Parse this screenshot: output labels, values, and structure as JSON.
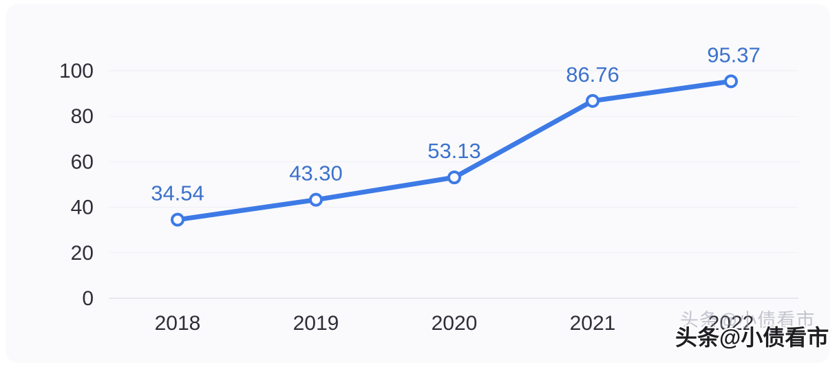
{
  "chart_data": {
    "type": "line",
    "title": "",
    "xlabel": "",
    "ylabel": "",
    "categories": [
      "2018",
      "2019",
      "2020",
      "2021",
      "2022"
    ],
    "series": [
      {
        "name": "value",
        "values": [
          34.54,
          43.3,
          53.13,
          86.76,
          95.37
        ],
        "point_labels": [
          "34.54",
          "43.30",
          "53.13",
          "86.76",
          "95.37"
        ]
      }
    ],
    "y_ticks": [
      0,
      20,
      40,
      60,
      80,
      100
    ],
    "ylim": [
      0,
      100
    ],
    "grid": "faint-horizontal",
    "legend_position": "none",
    "marker": "open-circle",
    "colors": {
      "line": "#3D7AE6",
      "marker_fill": "#fbfbfd",
      "point_label": "#3C72CC",
      "tick_label": "#2e2e38",
      "axis_line": "#e2e2ea",
      "grid_line": "#efeff5",
      "card_background": "#fafafc"
    }
  },
  "watermarks": {
    "light_text": "头条@小债看市",
    "dark_text": "头条@小债看市"
  }
}
